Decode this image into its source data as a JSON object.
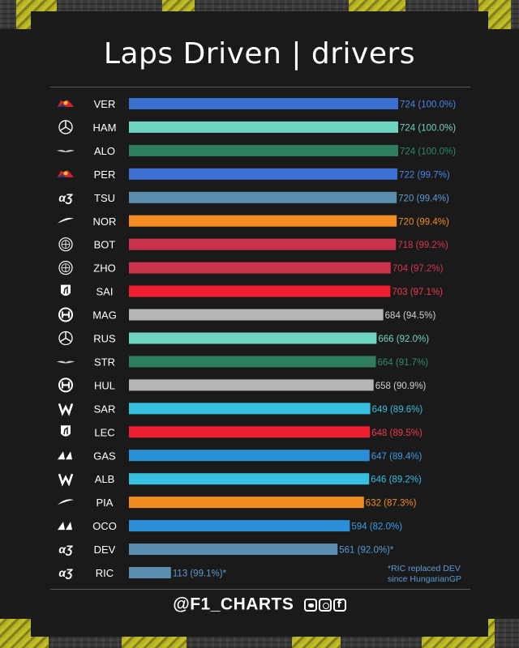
{
  "title": "Laps Driven | drivers",
  "footer": {
    "handle": "@F1_CHARTS",
    "social_icons": [
      "twitter-icon",
      "instagram-icon",
      "facebook-icon"
    ]
  },
  "note": "*RIC replaced DEV\nsince HungarianGP",
  "chart_data": {
    "type": "bar",
    "orientation": "horizontal",
    "title": "Laps Driven | drivers",
    "xlim": [
      0,
      724
    ],
    "categories": [
      "VER",
      "HAM",
      "ALO",
      "PER",
      "TSU",
      "NOR",
      "BOT",
      "ZHO",
      "SAI",
      "MAG",
      "RUS",
      "STR",
      "HUL",
      "SAR",
      "LEC",
      "GAS",
      "ALB",
      "PIA",
      "OCO",
      "DEV",
      "RIC"
    ],
    "values": [
      724,
      724,
      724,
      722,
      720,
      720,
      718,
      704,
      703,
      684,
      666,
      664,
      658,
      649,
      648,
      647,
      646,
      632,
      594,
      561,
      113
    ],
    "labels": [
      "724 (100.0%)",
      "724 (100.0%)",
      "724 (100.0%)",
      "722 (99.7%)",
      "720 (99.4%)",
      "720 (99.4%)",
      "718 (99.2%)",
      "704 (97.2%)",
      "703 (97.1%)",
      "684 (94.5%)",
      "666 (92.0%)",
      "664 (91.7%)",
      "658 (90.9%)",
      "649 (89.6%)",
      "648 (89.5%)",
      "647 (89.4%)",
      "646 (89.2%)",
      "632 (87.3%)",
      "594 (82.0%)",
      "561 (92.0%)*",
      "113 (99.1%)*"
    ],
    "teams": [
      "redbull",
      "mercedes",
      "astonmartin",
      "redbull",
      "alphatauri",
      "mclaren",
      "alfaromeo",
      "alfaromeo",
      "ferrari",
      "haas",
      "mercedes",
      "astonmartin",
      "haas",
      "williams",
      "ferrari",
      "alpine",
      "williams",
      "mclaren",
      "alpine",
      "alphatauri",
      "alphatauri"
    ],
    "bar_colors": [
      "#3b6fd1",
      "#6fd3c1",
      "#2e7d5e",
      "#3b6fd1",
      "#5b8fb0",
      "#f28b20",
      "#c8334a",
      "#c8334a",
      "#ef1f31",
      "#b5b5b5",
      "#6fd3c1",
      "#2e7d5e",
      "#b5b5b5",
      "#37bfe0",
      "#ef1f31",
      "#2a8fd6",
      "#37bfe0",
      "#f28b20",
      "#2a8fd6",
      "#5b8fb0",
      "#5b8fb0"
    ],
    "label_colors": [
      "#4a86e8",
      "#6fd3c1",
      "#2e8c64",
      "#4a86e8",
      "#5b9bd5",
      "#f28b20",
      "#d9344f",
      "#d9344f",
      "#ef3b4a",
      "#cfcfcf",
      "#6fd3c1",
      "#2e8c64",
      "#cfcfcf",
      "#37bfe0",
      "#ef3b4a",
      "#3a9be6",
      "#37bfe0",
      "#f28b20",
      "#3a9be6",
      "#5b9bd5",
      "#5b9bd5"
    ],
    "team_icons": {
      "redbull": "red-bull-logo-icon",
      "mercedes": "mercedes-star-icon",
      "astonmartin": "aston-martin-wings-icon",
      "alphatauri": "alphatauri-logo-icon",
      "mclaren": "mclaren-swoosh-icon",
      "alfaromeo": "alfa-romeo-badge-icon",
      "ferrari": "ferrari-horse-icon",
      "haas": "haas-logo-icon",
      "williams": "williams-w-icon",
      "alpine": "alpine-logo-icon"
    }
  }
}
